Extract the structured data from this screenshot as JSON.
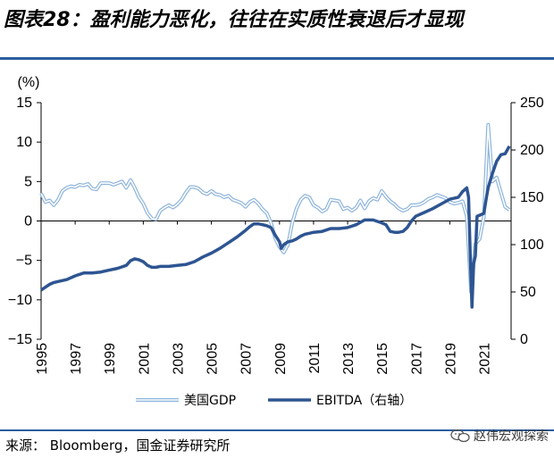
{
  "title": "图表28：盈利能力恶化，往往在实质性衰退后才显现",
  "source_text": "来源：  Bloomberg，国金证券研究所",
  "watermark_text": "赵伟宏观探索",
  "chart_data": {
    "type": "line",
    "ylabel_left": "(%)",
    "ylim_left": [
      -15,
      15
    ],
    "yticks_left": [
      15,
      10,
      5,
      0,
      -5,
      -10,
      -15
    ],
    "ytick_labels_left": [
      "15",
      "10",
      "5",
      "0",
      "−5",
      "−10",
      "−15"
    ],
    "ylim_right": [
      0,
      250
    ],
    "yticks_right": [
      250,
      200,
      150,
      100,
      50,
      0
    ],
    "xlim": [
      1995,
      2022.6
    ],
    "xticks": [
      1995,
      1997,
      1999,
      2001,
      2003,
      2005,
      2007,
      2009,
      2011,
      2013,
      2015,
      2017,
      2019,
      2021
    ],
    "grid": false,
    "legend_position": "bottom",
    "series": [
      {
        "name": "美国GDP",
        "axis": "left",
        "color": "#8db4dc",
        "style": "double-line",
        "x": [
          1995.0,
          1995.25,
          1995.5,
          1995.75,
          1996.0,
          1996.25,
          1996.5,
          1996.75,
          1997.0,
          1997.25,
          1997.5,
          1997.75,
          1998.0,
          1998.25,
          1998.5,
          1998.75,
          1999.0,
          1999.25,
          1999.5,
          1999.75,
          2000.0,
          2000.25,
          2000.5,
          2000.75,
          2001.0,
          2001.25,
          2001.5,
          2001.75,
          2002.0,
          2002.25,
          2002.5,
          2002.75,
          2003.0,
          2003.25,
          2003.5,
          2003.75,
          2004.0,
          2004.25,
          2004.5,
          2004.75,
          2005.0,
          2005.25,
          2005.5,
          2005.75,
          2006.0,
          2006.25,
          2006.5,
          2006.75,
          2007.0,
          2007.25,
          2007.5,
          2007.75,
          2008.0,
          2008.25,
          2008.5,
          2008.75,
          2009.0,
          2009.25,
          2009.5,
          2009.75,
          2010.0,
          2010.25,
          2010.5,
          2010.75,
          2011.0,
          2011.25,
          2011.5,
          2011.75,
          2012.0,
          2012.25,
          2012.5,
          2012.75,
          2013.0,
          2013.25,
          2013.5,
          2013.75,
          2014.0,
          2014.25,
          2014.5,
          2014.75,
          2015.0,
          2015.25,
          2015.5,
          2015.75,
          2016.0,
          2016.25,
          2016.5,
          2016.75,
          2017.0,
          2017.25,
          2017.5,
          2017.75,
          2018.0,
          2018.25,
          2018.5,
          2018.75,
          2019.0,
          2019.25,
          2019.5,
          2019.75,
          2020.0,
          2020.25,
          2020.5,
          2020.75,
          2021.0,
          2021.25,
          2021.5,
          2021.75,
          2022.0,
          2022.25,
          2022.5
        ],
        "values": [
          3.5,
          2.4,
          2.6,
          2.0,
          2.7,
          3.8,
          4.2,
          4.4,
          4.3,
          4.6,
          4.5,
          4.7,
          4.1,
          4.0,
          4.8,
          4.8,
          4.8,
          4.6,
          4.8,
          5.0,
          4.2,
          5.2,
          4.2,
          3.0,
          2.2,
          1.0,
          0.3,
          0.2,
          1.3,
          1.7,
          2.0,
          1.7,
          2.1,
          2.7,
          3.6,
          4.3,
          4.3,
          4.1,
          3.6,
          3.4,
          3.8,
          3.4,
          3.3,
          3.0,
          3.2,
          2.7,
          2.5,
          2.3,
          1.8,
          2.4,
          2.7,
          2.2,
          1.5,
          1.0,
          -0.2,
          -2.2,
          -3.3,
          -4.0,
          -3.0,
          -0.2,
          1.6,
          2.7,
          3.2,
          3.0,
          2.0,
          1.7,
          1.2,
          1.5,
          2.7,
          2.6,
          2.5,
          1.5,
          1.7,
          1.3,
          1.7,
          2.6,
          1.6,
          2.5,
          2.9,
          2.7,
          3.8,
          3.1,
          2.5,
          2.1,
          1.6,
          1.3,
          1.5,
          2.0,
          2.0,
          2.1,
          2.4,
          2.8,
          3.0,
          3.3,
          3.1,
          2.9,
          2.4,
          2.2,
          2.3,
          2.5,
          0.6,
          -9.0,
          -2.9,
          -2.3,
          0.5,
          12.2,
          5.0,
          5.5,
          3.6,
          1.8,
          1.4
        ]
      },
      {
        "name": "EBITDA（右轴）",
        "axis": "right",
        "color": "#2e5592",
        "style": "thick-line",
        "x": [
          1995.0,
          1995.25,
          1995.5,
          1995.75,
          1996.0,
          1996.5,
          1997.0,
          1997.5,
          1998.0,
          1998.5,
          1999.0,
          1999.5,
          2000.0,
          2000.25,
          2000.5,
          2000.75,
          2001.0,
          2001.25,
          2001.5,
          2001.75,
          2002.0,
          2002.5,
          2003.0,
          2003.5,
          2004.0,
          2004.5,
          2005.0,
          2005.5,
          2006.0,
          2006.5,
          2007.0,
          2007.25,
          2007.5,
          2007.75,
          2008.0,
          2008.25,
          2008.5,
          2008.75,
          2009.0,
          2009.1,
          2009.25,
          2009.5,
          2009.75,
          2010.0,
          2010.25,
          2010.5,
          2010.75,
          2011.0,
          2011.5,
          2012.0,
          2012.5,
          2013.0,
          2013.5,
          2014.0,
          2014.5,
          2015.0,
          2015.25,
          2015.5,
          2015.75,
          2016.0,
          2016.25,
          2016.5,
          2016.75,
          2017.0,
          2017.5,
          2018.0,
          2018.5,
          2019.0,
          2019.5,
          2019.75,
          2020.0,
          2020.1,
          2020.2,
          2020.3,
          2020.4,
          2020.5,
          2020.6,
          2020.75,
          2021.0,
          2021.15,
          2021.25,
          2021.5,
          2021.75,
          2022.0,
          2022.25,
          2022.5
        ],
        "values": [
          52,
          55,
          58,
          60,
          61,
          63,
          67,
          70,
          70,
          71,
          73,
          75,
          78,
          83,
          85,
          84,
          82,
          78,
          76,
          76,
          77,
          77,
          78,
          79,
          82,
          87,
          91,
          96,
          102,
          108,
          115,
          119,
          122,
          122,
          121,
          120,
          118,
          110,
          103,
          96,
          100,
          103,
          104,
          106,
          109,
          111,
          112,
          113,
          114,
          117,
          117,
          118,
          121,
          126,
          126,
          123,
          121,
          114,
          113,
          113,
          114,
          118,
          125,
          130,
          134,
          138,
          143,
          148,
          150,
          156,
          160,
          150,
          88,
          34,
          80,
          88,
          130,
          131,
          133,
          150,
          160,
          175,
          188,
          195,
          196,
          204
        ]
      }
    ]
  }
}
